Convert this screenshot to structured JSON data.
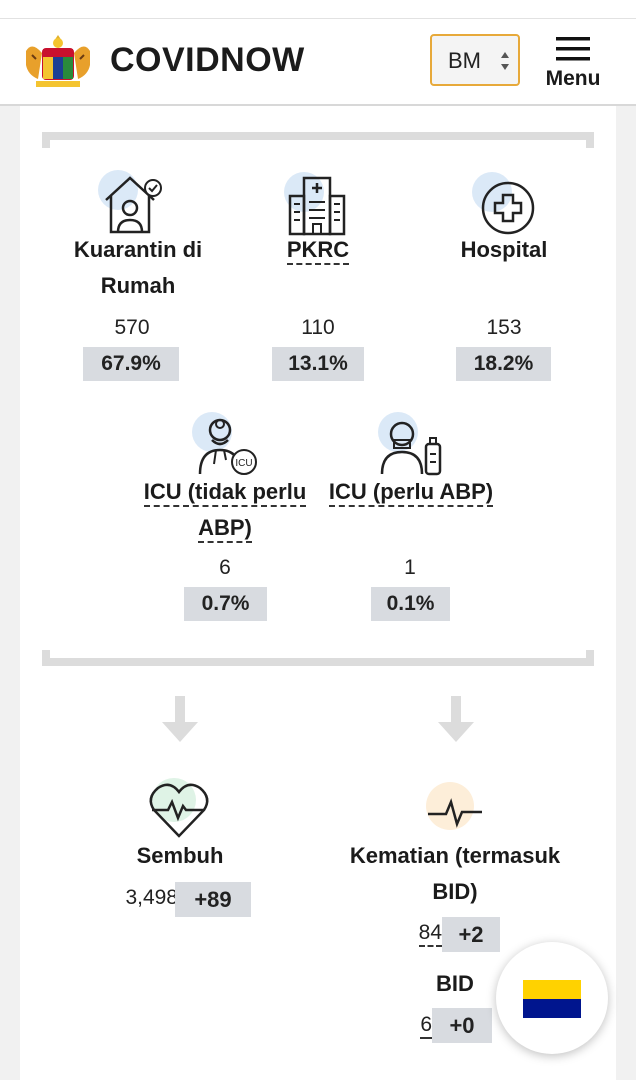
{
  "header": {
    "brand": "COVIDNOW",
    "language": "BM",
    "menu_label": "Menu"
  },
  "status": [
    {
      "label": "Kuarantin di",
      "label2": "Rumah",
      "count": "570",
      "percent": "67.9%",
      "icon": "home-quarantine-icon"
    },
    {
      "label": "PKRC",
      "count": "110",
      "percent": "13.1%",
      "icon": "building-icon"
    },
    {
      "label": "Hospital",
      "count": "153",
      "percent": "18.2%",
      "icon": "medical-cross-icon"
    },
    {
      "label": "ICU (tidak perlu",
      "label2": "ABP)",
      "count": "6",
      "percent": "0.7%",
      "icon": "icu-doctor-icon"
    },
    {
      "label": "ICU (perlu ABP)",
      "count": "1",
      "percent": "0.1%",
      "icon": "ventilator-patient-icon"
    }
  ],
  "outcomes": {
    "recovered": {
      "label": "Sembuh",
      "count": "3,498",
      "delta": "+89",
      "icon": "heart-pulse-icon"
    },
    "deaths": {
      "label": "Kematian (termasuk",
      "label2": "BID)",
      "count": "84",
      "delta": "+2",
      "icon": "heartbeat-line-icon"
    },
    "bid": {
      "label": "BID",
      "count": "6",
      "delta": "+0"
    }
  },
  "colors": {
    "accent_border": "#e7a93a",
    "percent_bg": "#d8dbe0",
    "icon_blue_bg": "#dbe9f7",
    "icon_green_bg": "#dff3e6",
    "icon_orange_bg": "#fdeed9"
  }
}
